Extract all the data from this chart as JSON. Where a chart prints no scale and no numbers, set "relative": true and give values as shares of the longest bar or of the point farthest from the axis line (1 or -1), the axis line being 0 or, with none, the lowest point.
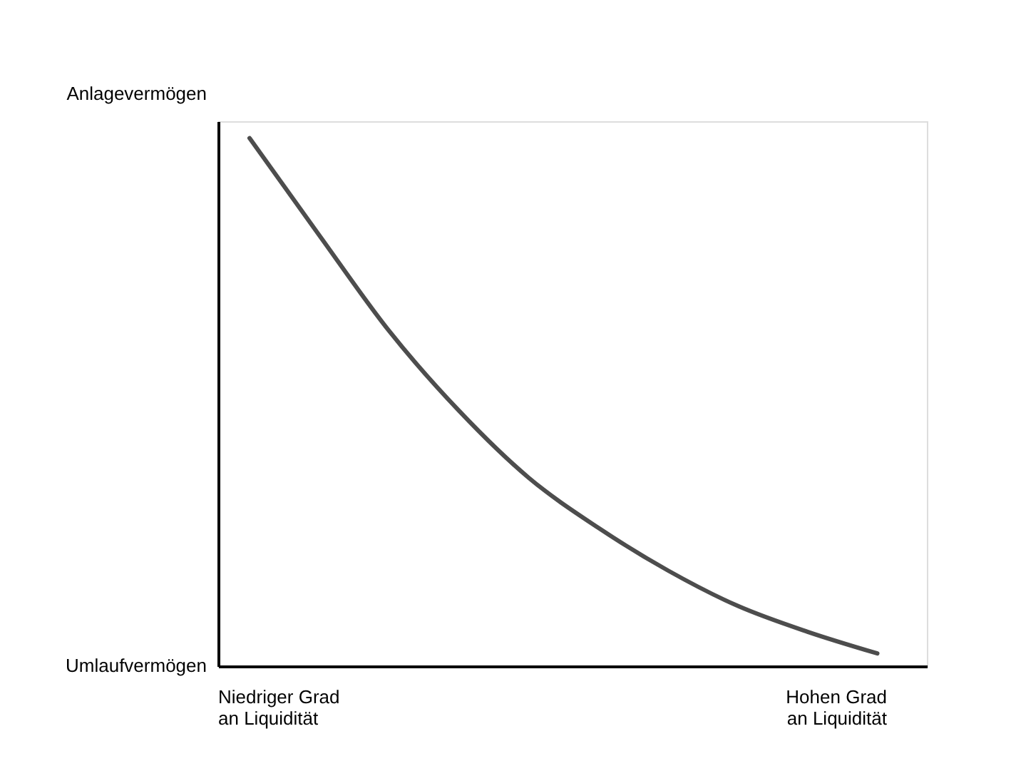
{
  "chart_data": {
    "type": "line",
    "relative": true,
    "categories": [
      null,
      null,
      null,
      null,
      null,
      null,
      null,
      null,
      null,
      null
    ],
    "series": [
      {
        "color": "#4d4d4d",
        "values": [
          1,
          0.816,
          0.635,
          0.484,
          0.357,
          0.262,
          0.181,
          0.114,
          0.065,
          0.024
        ]
      }
    ],
    "line_style": "solid",
    "marker": "none",
    "grid": false,
    "annotations": [
      "Anlagevermögen",
      "Umlaufvermögen",
      "Niedriger Grad\nan Liquidität",
      "Hohen Grad\nan Liquidität"
    ]
  }
}
